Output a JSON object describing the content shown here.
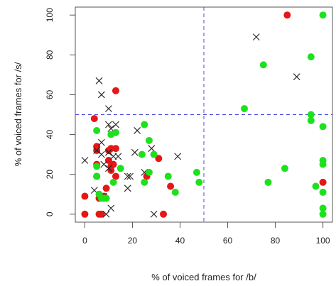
{
  "chart_data": {
    "type": "scatter",
    "xlabel": "% of voiced frames for /b/",
    "ylabel": "% of voiced frames for /s/",
    "xlim": [
      -4,
      104
    ],
    "ylim": [
      -4,
      104
    ],
    "xticks": [
      0,
      20,
      40,
      60,
      80,
      100
    ],
    "yticks": [
      0,
      20,
      40,
      60,
      80,
      100
    ],
    "reference_lines": {
      "x": 50,
      "y": 50,
      "color": "#4b4bd6",
      "style": "dashed"
    },
    "grid": false,
    "series": [
      {
        "marker": "filled-circle",
        "color": "#e61717",
        "points": [
          [
            0,
            9
          ],
          [
            0,
            0
          ],
          [
            4,
            48
          ],
          [
            5,
            34
          ],
          [
            5,
            32
          ],
          [
            5,
            25
          ],
          [
            5,
            19
          ],
          [
            6,
            0
          ],
          [
            6,
            8
          ],
          [
            7,
            0
          ],
          [
            8,
            9
          ],
          [
            9,
            13
          ],
          [
            10,
            32
          ],
          [
            10,
            27
          ],
          [
            11,
            33
          ],
          [
            11,
            24
          ],
          [
            11,
            22
          ],
          [
            12,
            25
          ],
          [
            13,
            62
          ],
          [
            13,
            33
          ],
          [
            13,
            19
          ],
          [
            26,
            19
          ],
          [
            31,
            28
          ],
          [
            33,
            0
          ],
          [
            36,
            14
          ],
          [
            85,
            100
          ],
          [
            100,
            16
          ]
        ]
      },
      {
        "marker": "cross",
        "color": "#222222",
        "points": [
          [
            0,
            27
          ],
          [
            4,
            12
          ],
          [
            5,
            32
          ],
          [
            6,
            67
          ],
          [
            7,
            60
          ],
          [
            7,
            36
          ],
          [
            7,
            30
          ],
          [
            8,
            25
          ],
          [
            8,
            9
          ],
          [
            9,
            0
          ],
          [
            10,
            53
          ],
          [
            10,
            45
          ],
          [
            10,
            31
          ],
          [
            10,
            23
          ],
          [
            11,
            43
          ],
          [
            11,
            3
          ],
          [
            12,
            29
          ],
          [
            13,
            45
          ],
          [
            14,
            29
          ],
          [
            18,
            19
          ],
          [
            18,
            13
          ],
          [
            19,
            19
          ],
          [
            21,
            31
          ],
          [
            22,
            42
          ],
          [
            25,
            21
          ],
          [
            28,
            33
          ],
          [
            29,
            0
          ],
          [
            39,
            29
          ],
          [
            72,
            89
          ],
          [
            89,
            69
          ]
        ]
      },
      {
        "marker": "filled-circle",
        "color": "#1ee11e",
        "points": [
          [
            5,
            42
          ],
          [
            5,
            24
          ],
          [
            5,
            19
          ],
          [
            6,
            10
          ],
          [
            7,
            8
          ],
          [
            8,
            8
          ],
          [
            9,
            8
          ],
          [
            11,
            40
          ],
          [
            12,
            16
          ],
          [
            13,
            41
          ],
          [
            15,
            23
          ],
          [
            24,
            30
          ],
          [
            25,
            45
          ],
          [
            25,
            16
          ],
          [
            27,
            37
          ],
          [
            27,
            21
          ],
          [
            29,
            30
          ],
          [
            35,
            19
          ],
          [
            38,
            11
          ],
          [
            47,
            21
          ],
          [
            48,
            16
          ],
          [
            67,
            53
          ],
          [
            75,
            75
          ],
          [
            77,
            16
          ],
          [
            84,
            23
          ],
          [
            95,
            79
          ],
          [
            95,
            50
          ],
          [
            95,
            47
          ],
          [
            97,
            14
          ],
          [
            100,
            100
          ],
          [
            100,
            44
          ],
          [
            100,
            27
          ],
          [
            100,
            25
          ],
          [
            100,
            11
          ],
          [
            100,
            3
          ],
          [
            100,
            0
          ]
        ]
      }
    ]
  }
}
